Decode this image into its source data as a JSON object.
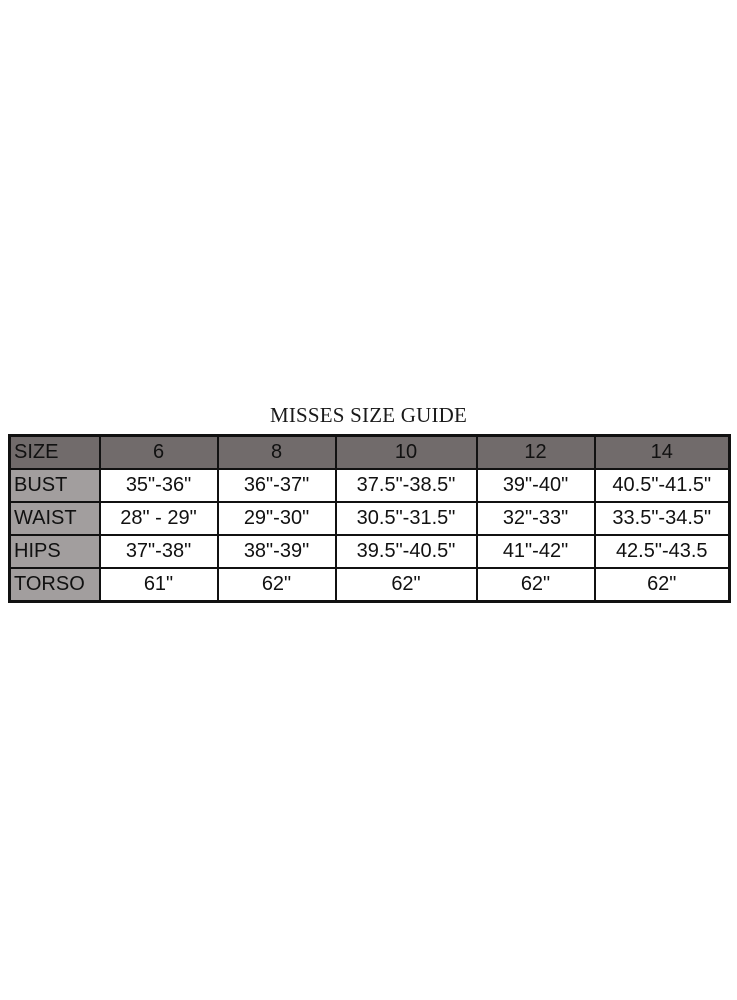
{
  "title": "MISSES SIZE GUIDE",
  "colors": {
    "header_bg": "#716b6b",
    "label_bg": "#a29e9e",
    "border": "#111111"
  },
  "table": {
    "header": [
      "SIZE",
      "6",
      "8",
      "10",
      "12",
      "14"
    ],
    "rows": [
      {
        "label": "BUST",
        "values": [
          "35\"-36\"",
          "36\"-37\"",
          "37.5\"-38.5\"",
          "39\"-40\"",
          "40.5\"-41.5\""
        ]
      },
      {
        "label": "WAIST",
        "values": [
          "28\" - 29\"",
          "29\"-30\"",
          "30.5\"-31.5\"",
          "32\"-33\"",
          "33.5\"-34.5\""
        ]
      },
      {
        "label": "HIPS",
        "values": [
          "37\"-38\"",
          "38\"-39\"",
          "39.5\"-40.5\"",
          "41\"-42\"",
          "42.5\"-43.5"
        ]
      },
      {
        "label": "TORSO",
        "values": [
          "61\"",
          "62\"",
          "62\"",
          "62\"",
          "62\""
        ]
      }
    ]
  }
}
